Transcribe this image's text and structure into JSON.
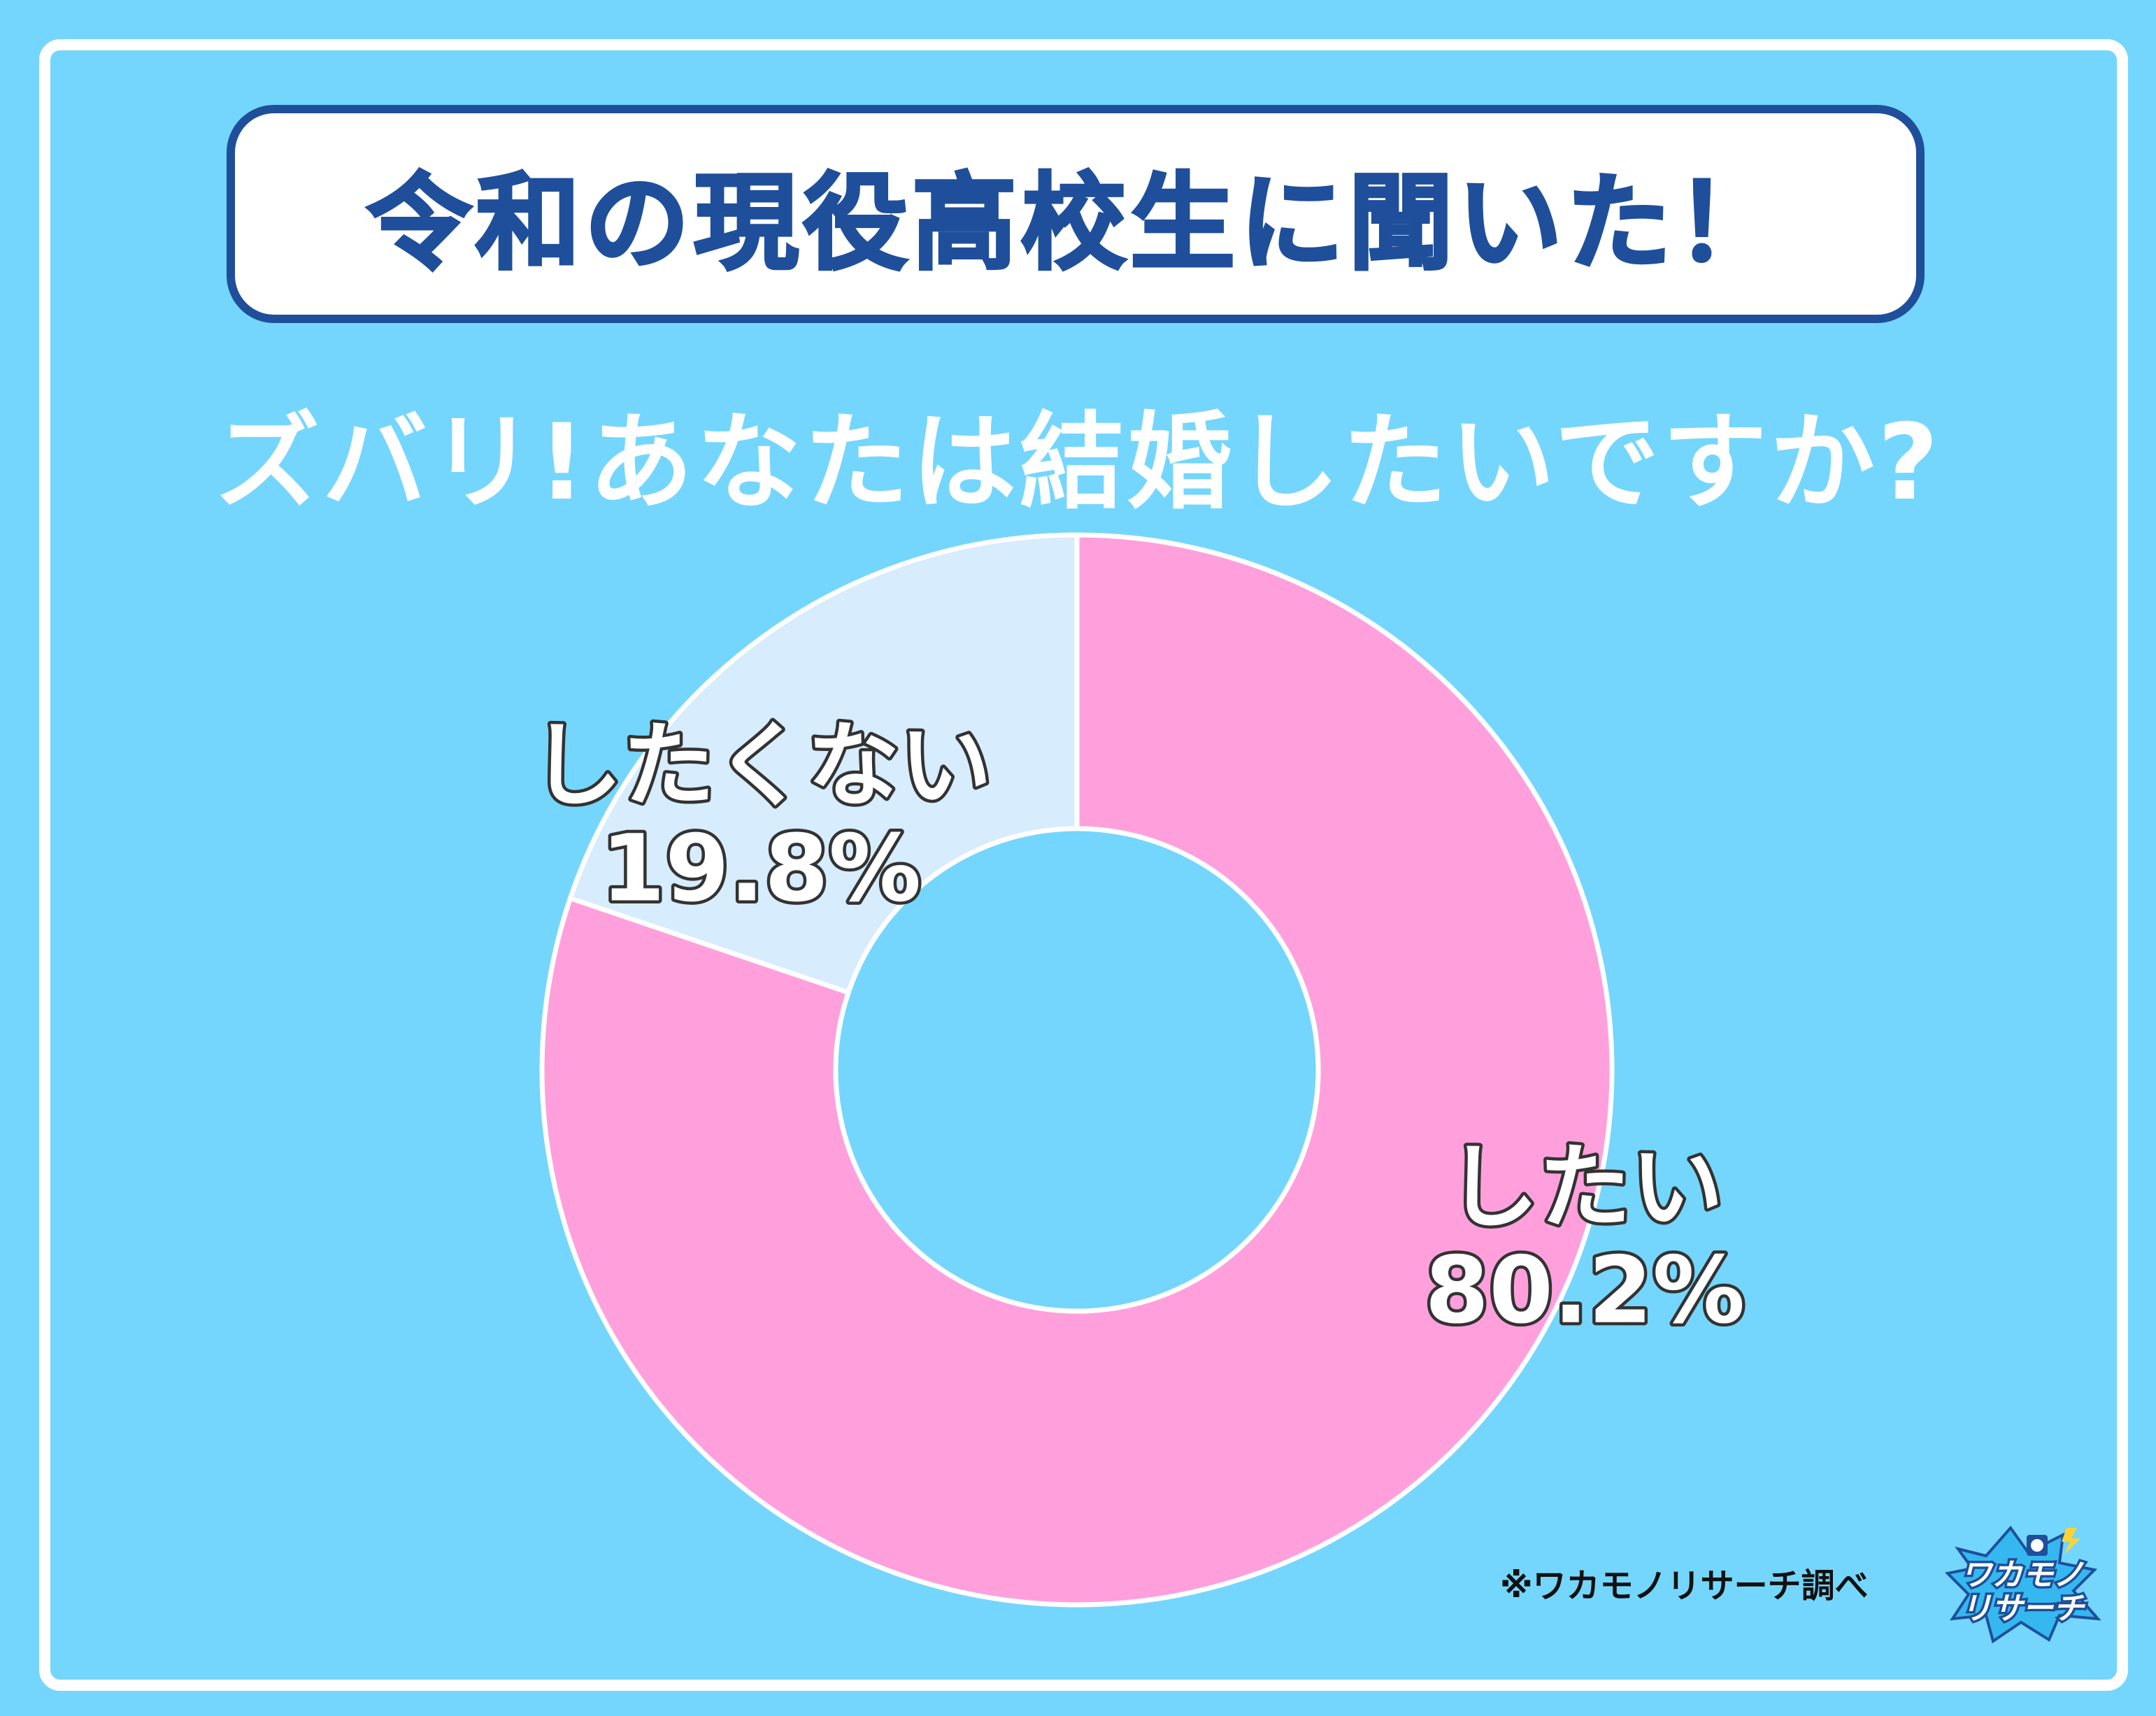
{
  "header": {
    "title": "令和の現役高校生に聞いた！"
  },
  "question": "ズバリ!あなたは結婚したいですか?",
  "chart_data": {
    "type": "pie",
    "style": "donut",
    "slices": [
      {
        "label": "したい",
        "value": 80.2,
        "value_label": "80.2%",
        "color": "#ffa0dc"
      },
      {
        "label": "したくない",
        "value": 19.8,
        "value_label": "19.8%",
        "color": "#d7ecfd"
      }
    ],
    "center_color": "#74d6fd",
    "border_color": "#ffffff"
  },
  "credit": "※ワカモノリサーチ調べ",
  "logo": {
    "line1": "ワカモノ",
    "line2": "リサーチ",
    "icon": "brand-logo-badge"
  }
}
